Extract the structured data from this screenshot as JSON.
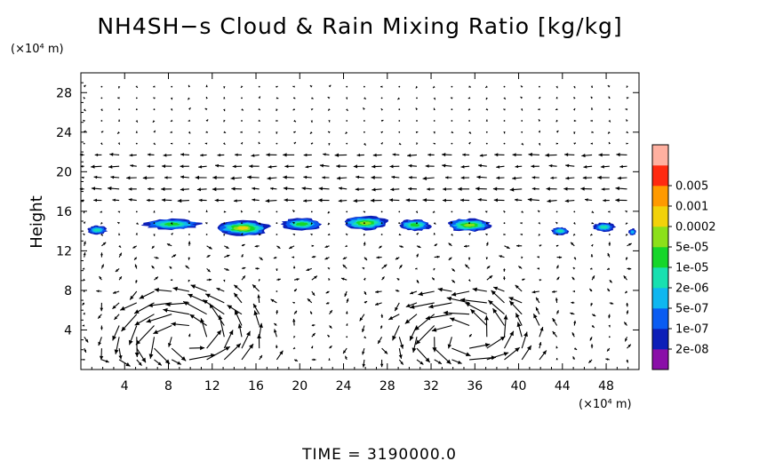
{
  "chart_data": {
    "type": "heatmap",
    "title": "NH4SH−s Cloud & Rain Mixing Ratio [kg/kg]",
    "xlabel": "",
    "ylabel": "Height",
    "x_unit": "(×10⁴ m)",
    "y_unit": "(×10⁴ m)",
    "xlim": [
      0,
      51
    ],
    "ylim": [
      0,
      30
    ],
    "x_ticks": [
      4,
      8,
      12,
      16,
      20,
      24,
      28,
      32,
      36,
      40,
      44,
      48
    ],
    "y_ticks": [
      4,
      8,
      12,
      16,
      20,
      24,
      28
    ],
    "colorbar": {
      "scale": "log",
      "levels": [
        "2e-08",
        "1e-07",
        "5e-07",
        "2e-06",
        "1e-05",
        "5e-05",
        "0.0002",
        "0.001",
        "0.005"
      ],
      "colors": [
        "#8a0fa8",
        "#0d1fb8",
        "#0a5cf2",
        "#0fb7f0",
        "#18e0b0",
        "#16d62a",
        "#8ce01a",
        "#f2d20a",
        "#ff9a00",
        "#ff2a10",
        "#ffb0a0"
      ]
    },
    "cloud_layer_height": [
      12.8,
      16.4
    ],
    "cloud_cells": [
      {
        "x": 1.5,
        "y": 14.1,
        "w": 1.8,
        "h": 0.9,
        "level": 4
      },
      {
        "x": 8.3,
        "y": 14.7,
        "w": 5.2,
        "h": 1.1,
        "level": 5
      },
      {
        "x": 14.8,
        "y": 14.3,
        "w": 4.8,
        "h": 1.5,
        "level": 7
      },
      {
        "x": 20.2,
        "y": 14.7,
        "w": 3.8,
        "h": 1.2,
        "level": 5
      },
      {
        "x": 26.0,
        "y": 14.8,
        "w": 4.2,
        "h": 1.4,
        "level": 6
      },
      {
        "x": 30.5,
        "y": 14.6,
        "w": 3.0,
        "h": 1.2,
        "level": 5
      },
      {
        "x": 35.5,
        "y": 14.6,
        "w": 4.2,
        "h": 1.3,
        "level": 6
      },
      {
        "x": 43.8,
        "y": 14.0,
        "w": 1.6,
        "h": 0.8,
        "level": 4
      },
      {
        "x": 47.8,
        "y": 14.4,
        "w": 2.0,
        "h": 0.9,
        "level": 4
      },
      {
        "x": 50.4,
        "y": 13.9,
        "w": 0.7,
        "h": 0.7,
        "level": 3
      }
    ],
    "wind_vectors": "velocity field (arrows)",
    "circulation_centers": [
      {
        "x": 9.5,
        "y": 3.2
      },
      {
        "x": 35.0,
        "y": 3.2
      }
    ]
  },
  "footer": {
    "time_label": "TIME  =  3190000.0"
  }
}
